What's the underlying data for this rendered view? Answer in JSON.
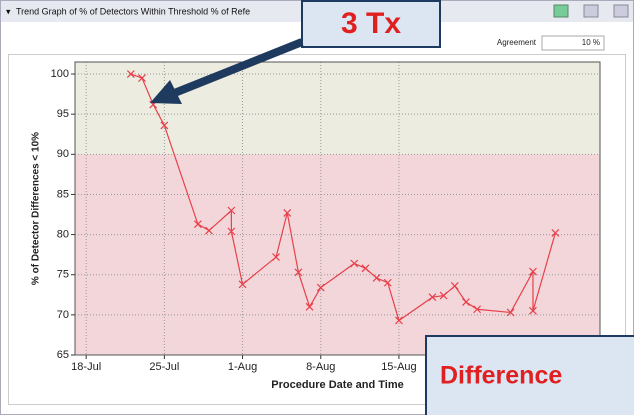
{
  "header": {
    "title": "Trend Graph of % of Detectors Within Threshold % of Refe",
    "agreement_label": "Agreement",
    "agreement_value": "10 %"
  },
  "annotations": [
    "3 Tx",
    "Difference"
  ],
  "chart_data": {
    "type": "line",
    "x_label": "Procedure Date and Time",
    "y_label": "% of Detector Differences < 10%",
    "x": [
      "22-Jul",
      "23-Jul",
      "24-Jul",
      "25-Jul",
      "28-Jul",
      "29-Jul",
      "31-Jul",
      "31-Jul",
      "1-Aug",
      "4-Aug",
      "5-Aug",
      "6-Aug",
      "7-Aug",
      "8-Aug",
      "11-Aug",
      "12-Aug",
      "13-Aug",
      "14-Aug",
      "15-Aug",
      "18-Aug",
      "19-Aug",
      "20-Aug",
      "21-Aug",
      "22-Aug",
      "25-Aug",
      "27-Aug",
      "27-Aug",
      "29-Aug"
    ],
    "values": [
      100,
      99.5,
      96.2,
      93.6,
      81.3,
      80.5,
      83,
      80.4,
      73.8,
      77.2,
      82.7,
      75.3,
      71,
      73.4,
      76.4,
      75.8,
      74.6,
      74,
      69.3,
      72.2,
      72.4,
      73.6,
      71.6,
      70.7,
      70.3,
      75.4,
      70.5,
      80.2
    ],
    "color": "#e8404a",
    "xlim": [
      "17-Jul",
      "2-Sep"
    ],
    "xticks": [
      "18-Jul",
      "25-Jul",
      "1-Aug",
      "8-Aug",
      "15-Aug"
    ],
    "ylim": [
      65,
      101.5
    ],
    "yticks": [
      65,
      70,
      75,
      80,
      85,
      90,
      95,
      100
    ],
    "grid": true,
    "threshold": 90,
    "above_color": "#ecece0",
    "below_color": "#f2d6da"
  }
}
